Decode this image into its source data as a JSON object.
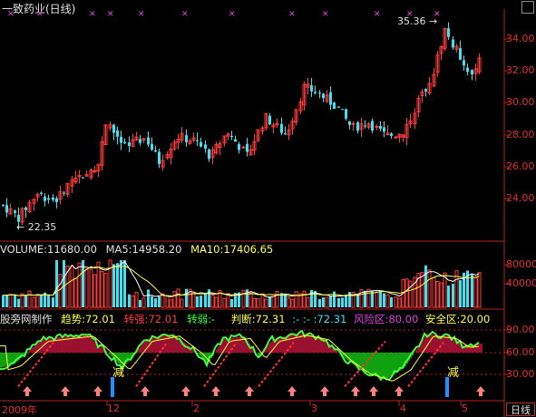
{
  "window": {
    "title": "一致药业(日线)"
  },
  "main_chart": {
    "high_label": "35.36",
    "low_label": "22.35",
    "y_ticks": [
      "34.00",
      "32.00",
      "30.00",
      "28.00",
      "26.00",
      "24.00"
    ]
  },
  "volume_panel": {
    "label_volume": "VOLUME:11680.00",
    "label_ma5": "MA5:14958.20",
    "label_ma10": "MA10:17406.65",
    "y_ticks": [
      "80000",
      "40000"
    ]
  },
  "indicator_panel": {
    "name": "股旁网制作",
    "trend_label": "趋势",
    "trend_value": ":72.01",
    "strong_label": "转强",
    "strong_value": ":72.01",
    "weak_label": "转弱",
    "weak_value": ":-",
    "judge_label": "判断",
    "judge_value": ":72.31",
    "dash_values": ":- :- :72.31",
    "risk_label": "风险区",
    "risk_value": ":80.00",
    "safe_label": "安全区",
    "safe_value": ":20.00",
    "y_ticks": [
      "90.00",
      "60.00",
      "30.00"
    ],
    "markers": [
      "减",
      "减"
    ]
  },
  "x_axis": {
    "labels": [
      "2009年",
      "12",
      "2",
      "3",
      "4",
      "5"
    ]
  },
  "period_button": "日线",
  "colors": {
    "up": "#ff3c3c",
    "down": "#40e0f0",
    "ma5": "#ffffff",
    "ma10": "#ffff40",
    "axis": "#b02020",
    "fill_red": "#9a1030",
    "fill_green": "#10a010",
    "marker_magenta": "#e040e0"
  }
}
